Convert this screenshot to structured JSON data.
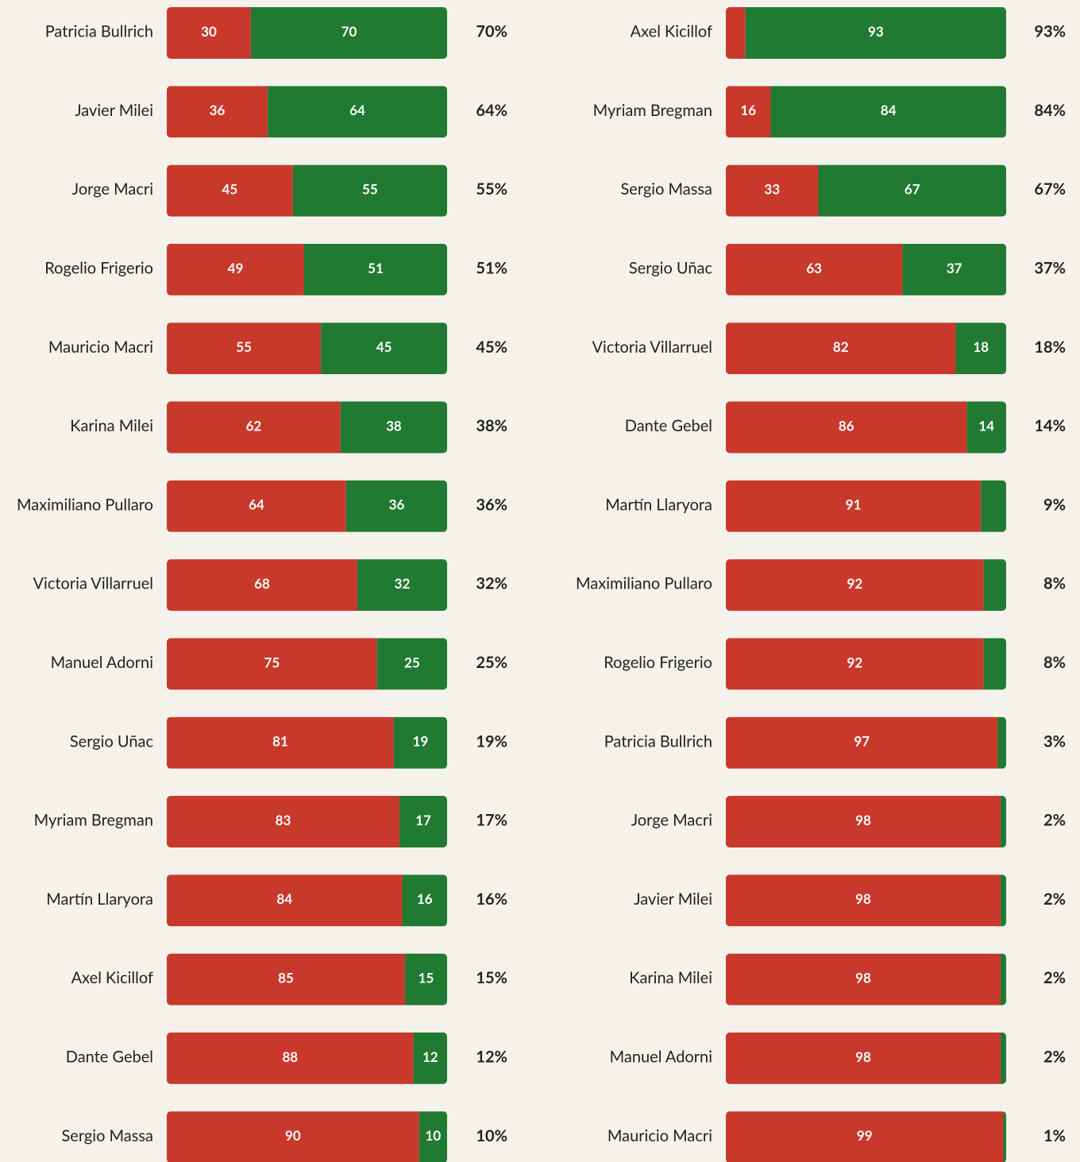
{
  "chart_data": [
    {
      "type": "stacked-bar-horizontal",
      "categories": [
        "Patricia Bullrich",
        "Javier Milei",
        "Jorge Macri",
        "Rogelio Frigerio",
        "Mauricio Macri",
        "Karina Milei",
        "Maximiliano Pullaro",
        "Victoria Villarruel",
        "Manuel Adorni",
        "Sergio Uñac",
        "Myriam Bregman",
        "Martín Llaryora",
        "Axel Kicillof",
        "Dante Gebel",
        "Sergio Massa"
      ],
      "series": [
        {
          "color": "#c8392b",
          "values": [
            30,
            36,
            45,
            49,
            55,
            62,
            64,
            68,
            75,
            81,
            83,
            84,
            85,
            88,
            90
          ]
        },
        {
          "color": "#217a32",
          "values": [
            70,
            64,
            55,
            51,
            45,
            38,
            36,
            32,
            25,
            19,
            17,
            16,
            15,
            12,
            10
          ],
          "value_labels": [
            "70%",
            "64%",
            "55%",
            "51%",
            "45%",
            "38%",
            "36%",
            "32%",
            "25%",
            "19%",
            "17%",
            "16%",
            "15%",
            "12%",
            "10%"
          ]
        }
      ],
      "xlim": [
        0,
        100
      ]
    },
    {
      "type": "stacked-bar-horizontal",
      "categories": [
        "Axel Kicillof",
        "Myriam Bregman",
        "Sergio Massa",
        "Sergio Uñac",
        "Victoria Villarruel",
        "Dante Gebel",
        "Martín Llaryora",
        "Maximiliano Pullaro",
        "Rogelio Frigerio",
        "Patricia Bullrich",
        "Jorge Macri",
        "Javier Milei",
        "Karina Milei",
        "Manuel Adorni",
        "Mauricio Macri"
      ],
      "series": [
        {
          "color": "#c8392b",
          "values": [
            7,
            16,
            33,
            63,
            82,
            86,
            91,
            92,
            92,
            97,
            98,
            98,
            98,
            98,
            99
          ]
        },
        {
          "color": "#217a32",
          "values": [
            93,
            84,
            67,
            37,
            18,
            14,
            9,
            8,
            8,
            3,
            2,
            2,
            2,
            2,
            1
          ],
          "value_labels": [
            "93%",
            "84%",
            "67%",
            "37%",
            "18%",
            "14%",
            "9%",
            "8%",
            "8%",
            "3%",
            "2%",
            "2%",
            "2%",
            "2%",
            "1%"
          ]
        }
      ],
      "xlim": [
        0,
        100
      ]
    }
  ]
}
